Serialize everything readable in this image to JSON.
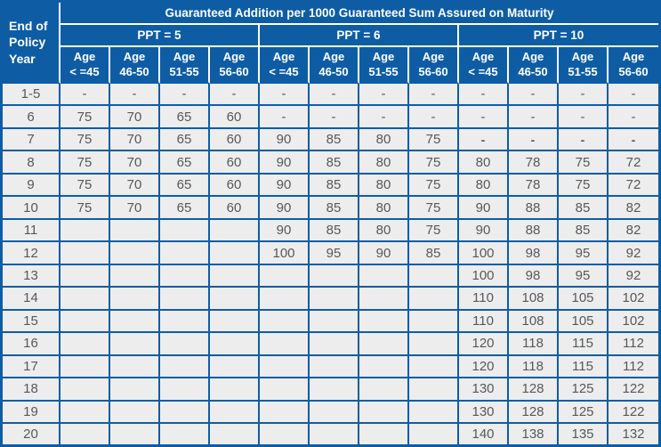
{
  "colors": {
    "header_blue": "#0e5da4",
    "body_bg": "#ecedec",
    "body_text": "#57585a",
    "header_text": "#ffffff"
  },
  "table": {
    "corner_label": "End of\nPolicy\nYear",
    "title": "Guaranteed Addition per 1000 Guaranteed Sum Assured on Maturity",
    "ppt_groups": [
      "PPT = 5",
      "PPT = 6",
      "PPT = 10"
    ],
    "age_labels": [
      "Age\n< =45",
      "Age\n46-50",
      "Age\n51-55",
      "Age\n56-60"
    ],
    "rows": [
      {
        "year": "1-5",
        "cells": [
          "-",
          "-",
          "-",
          "-",
          "-",
          "-",
          "-",
          "-",
          "-",
          "-",
          "-",
          "-"
        ]
      },
      {
        "year": "6",
        "cells": [
          "75",
          "70",
          "65",
          "60",
          "-",
          "-",
          "-",
          "-",
          "-",
          "-",
          "-",
          "-"
        ]
      },
      {
        "year": "7",
        "cells": [
          "75",
          "70",
          "65",
          "60",
          "90",
          "85",
          "80",
          "75",
          "-",
          "-",
          "-",
          "-"
        ],
        "bold_cells": [
          8,
          9,
          10,
          11
        ]
      },
      {
        "year": "8",
        "cells": [
          "75",
          "70",
          "65",
          "60",
          "90",
          "85",
          "80",
          "75",
          "80",
          "78",
          "75",
          "72"
        ]
      },
      {
        "year": "9",
        "cells": [
          "75",
          "70",
          "65",
          "60",
          "90",
          "85",
          "80",
          "75",
          "80",
          "78",
          "75",
          "72"
        ]
      },
      {
        "year": "10",
        "cells": [
          "75",
          "70",
          "65",
          "60",
          "90",
          "85",
          "80",
          "75",
          "90",
          "88",
          "85",
          "82"
        ]
      },
      {
        "year": "11",
        "cells": [
          "",
          "",
          "",
          "",
          "90",
          "85",
          "80",
          "75",
          "90",
          "88",
          "85",
          "82"
        ]
      },
      {
        "year": "12",
        "cells": [
          "",
          "",
          "",
          "",
          "100",
          "95",
          "90",
          "85",
          "100",
          "98",
          "95",
          "92"
        ]
      },
      {
        "year": "13",
        "cells": [
          "",
          "",
          "",
          "",
          "",
          "",
          "",
          "",
          "100",
          "98",
          "95",
          "92"
        ]
      },
      {
        "year": "14",
        "cells": [
          "",
          "",
          "",
          "",
          "",
          "",
          "",
          "",
          "110",
          "108",
          "105",
          "102"
        ]
      },
      {
        "year": "15",
        "cells": [
          "",
          "",
          "",
          "",
          "",
          "",
          "",
          "",
          "110",
          "108",
          "105",
          "102"
        ]
      },
      {
        "year": "16",
        "cells": [
          "",
          "",
          "",
          "",
          "",
          "",
          "",
          "",
          "120",
          "118",
          "115",
          "112"
        ]
      },
      {
        "year": "17",
        "cells": [
          "",
          "",
          "",
          "",
          "",
          "",
          "",
          "",
          "120",
          "118",
          "115",
          "112"
        ]
      },
      {
        "year": "18",
        "cells": [
          "",
          "",
          "",
          "",
          "",
          "",
          "",
          "",
          "130",
          "128",
          "125",
          "122"
        ]
      },
      {
        "year": "19",
        "cells": [
          "",
          "",
          "",
          "",
          "",
          "",
          "",
          "",
          "130",
          "128",
          "125",
          "122"
        ]
      },
      {
        "year": "20",
        "cells": [
          "",
          "",
          "",
          "",
          "",
          "",
          "",
          "",
          "140",
          "138",
          "135",
          "132"
        ]
      }
    ]
  }
}
